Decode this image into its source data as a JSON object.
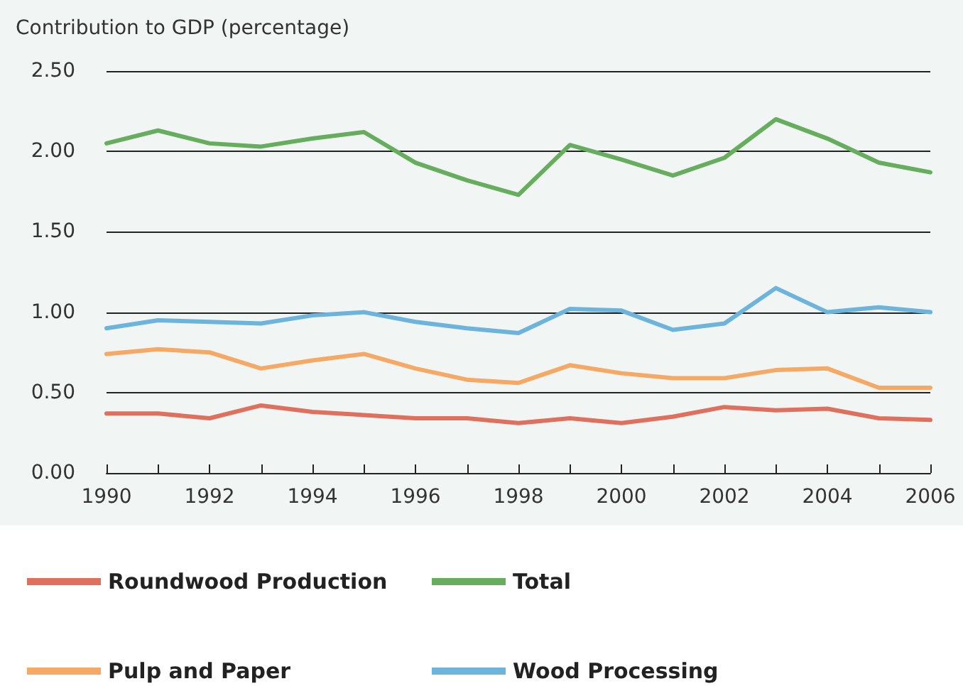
{
  "chart_data": {
    "type": "line",
    "ylabel": "Contribution to GDP (percentage)",
    "x": [
      1990,
      1991,
      1992,
      1993,
      1994,
      1995,
      1996,
      1997,
      1998,
      1999,
      2000,
      2001,
      2002,
      2003,
      2004,
      2005,
      2006
    ],
    "series": [
      {
        "name": "Roundwood Production",
        "color": "#e0705e",
        "values": [
          0.37,
          0.37,
          0.34,
          0.42,
          0.38,
          0.36,
          0.34,
          0.34,
          0.31,
          0.34,
          0.31,
          0.35,
          0.41,
          0.39,
          0.4,
          0.34,
          0.33
        ]
      },
      {
        "name": "Total",
        "color": "#66ad5e",
        "values": [
          2.05,
          2.13,
          2.05,
          2.03,
          2.08,
          2.12,
          1.93,
          1.82,
          1.73,
          2.04,
          1.95,
          1.85,
          1.96,
          2.2,
          2.08,
          1.93,
          1.87
        ]
      },
      {
        "name": "Pulp and Paper",
        "color": "#f6a865",
        "values": [
          0.74,
          0.77,
          0.75,
          0.65,
          0.7,
          0.74,
          0.65,
          0.58,
          0.56,
          0.67,
          0.62,
          0.59,
          0.59,
          0.64,
          0.65,
          0.53,
          0.53
        ]
      },
      {
        "name": "Wood Processing",
        "color": "#6cb4dc",
        "values": [
          0.9,
          0.95,
          0.94,
          0.93,
          0.98,
          1.0,
          0.94,
          0.9,
          0.87,
          1.02,
          1.01,
          0.89,
          0.93,
          1.15,
          1.0,
          1.03,
          1.0
        ]
      }
    ],
    "xlim": [
      1990,
      2006
    ],
    "xticks": [
      1990,
      {
        "value": 1991,
        "label": null
      },
      1992,
      {
        "value": 1993,
        "label": null
      },
      1994,
      {
        "value": 1995,
        "label": null
      },
      1996,
      {
        "value": 1997,
        "label": null
      },
      1998,
      {
        "value": 1999,
        "label": null
      },
      2000,
      {
        "value": 2001,
        "label": null
      },
      2002,
      {
        "value": 2003,
        "label": null
      },
      2004,
      {
        "value": 2005,
        "label": null
      },
      2006
    ],
    "ylim": [
      0,
      2.5
    ],
    "yticks": [
      {
        "value": 0,
        "label": "0.00"
      },
      {
        "value": 0.5,
        "label": "0.50"
      },
      {
        "value": 1,
        "label": "1.00"
      },
      {
        "value": 1.5,
        "label": "1.50"
      },
      {
        "value": 2,
        "label": "2.00"
      },
      {
        "value": 2.5,
        "label": "2.50"
      }
    ],
    "grid": "y",
    "legend": "bottom",
    "marker": "none",
    "line_style": "solid"
  }
}
